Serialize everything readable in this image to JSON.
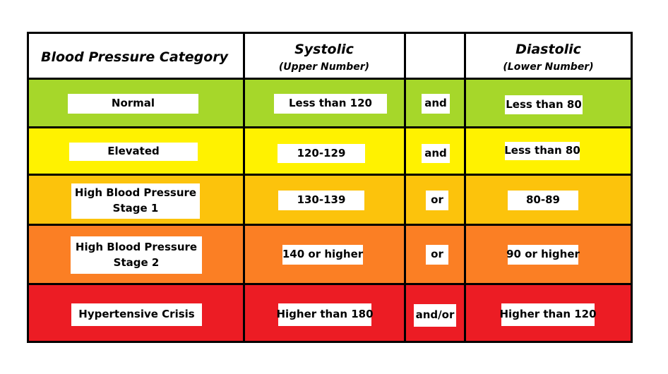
{
  "header": {
    "category": "Blood Pressure Category",
    "systolic": "Systolic",
    "systolic_sub": "(Upper Number)",
    "diastolic": "Diastolic",
    "diastolic_sub": "(Lower Number)"
  },
  "rows": [
    {
      "category": [
        "Normal"
      ],
      "systolic": "Less than 120",
      "connector": "and",
      "diastolic": "Less than 80",
      "color": "#a6d72a"
    },
    {
      "category": [
        "Elevated"
      ],
      "systolic": "120-129",
      "connector": "and",
      "diastolic": "Less than 80",
      "color": "#fff200"
    },
    {
      "category": [
        "High Blood Pressure",
        "Stage 1"
      ],
      "systolic": "130-139",
      "connector": "or",
      "diastolic": "80-89",
      "color": "#fcc30c"
    },
    {
      "category": [
        "High Blood Pressure",
        "Stage 2"
      ],
      "systolic": "140 or higher",
      "connector": "or",
      "diastolic": "90 or higher",
      "color": "#fb7f24"
    },
    {
      "category": [
        "Hypertensive Crisis"
      ],
      "systolic": "Higher than 180",
      "connector": "and/or",
      "diastolic": "Higher than 120",
      "color": "#ec1c24"
    }
  ]
}
